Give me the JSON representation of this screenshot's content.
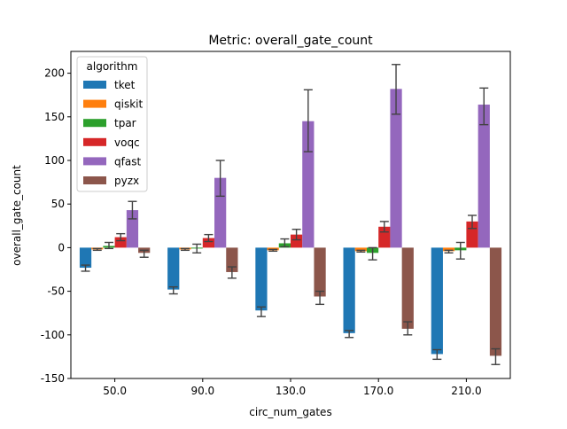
{
  "chart_data": {
    "type": "bar",
    "title": "Metric: overall_gate_count",
    "xlabel": "circ_num_gates",
    "ylabel": "overall_gate_count",
    "categories": [
      "50.0",
      "90.0",
      "130.0",
      "170.0",
      "210.0"
    ],
    "ylim": [
      -150,
      225
    ],
    "yticks": [
      -150,
      -100,
      -50,
      0,
      50,
      100,
      150,
      200
    ],
    "grid": false,
    "legend": {
      "title": "algorithm",
      "placement": "upper-left"
    },
    "series": [
      {
        "name": "tket",
        "color": "#1f77b4",
        "values": [
          -23,
          -48,
          -72,
          -98,
          -122
        ],
        "err_low": [
          -27,
          -53,
          -79,
          -103,
          -128
        ],
        "err_high": [
          -20,
          -45,
          -68,
          -95,
          -117
        ]
      },
      {
        "name": "qiskit",
        "color": "#ff7f0e",
        "values": [
          -2,
          -2,
          -3,
          -4,
          -4
        ],
        "err_low": [
          -3,
          -3,
          -4,
          -5,
          -6
        ],
        "err_high": [
          -1,
          -1,
          -2,
          -3,
          -3
        ]
      },
      {
        "name": "tpar",
        "color": "#2ca02c",
        "values": [
          2,
          -1,
          5,
          -6,
          -3
        ],
        "err_low": [
          -1,
          -6,
          1,
          -14,
          -13
        ],
        "err_high": [
          6,
          4,
          10,
          0,
          6
        ]
      },
      {
        "name": "voqc",
        "color": "#d62728",
        "values": [
          12,
          11,
          15,
          24,
          30
        ],
        "err_low": [
          8,
          7,
          9,
          18,
          22
        ],
        "err_high": [
          16,
          15,
          21,
          30,
          37
        ]
      },
      {
        "name": "qfast",
        "color": "#9467bd",
        "values": [
          43,
          80,
          145,
          182,
          164
        ],
        "err_low": [
          33,
          59,
          110,
          153,
          141
        ],
        "err_high": [
          53,
          100,
          181,
          210,
          183
        ]
      },
      {
        "name": "pyzx",
        "color": "#8c564b",
        "values": [
          -6,
          -28,
          -56,
          -93,
          -124
        ],
        "err_low": [
          -11,
          -35,
          -65,
          -100,
          -134
        ],
        "err_high": [
          -3,
          -22,
          -50,
          -85,
          -116
        ]
      }
    ]
  }
}
